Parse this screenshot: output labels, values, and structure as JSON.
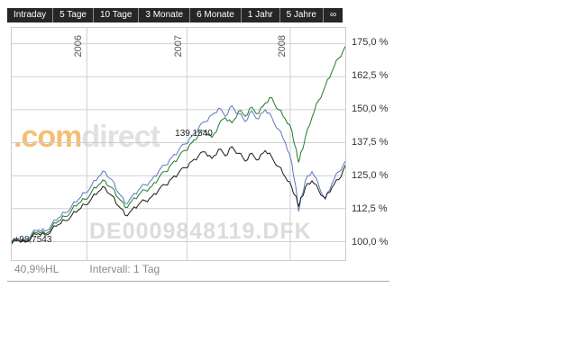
{
  "header": {
    "tabs": [
      {
        "label": "Intraday"
      },
      {
        "label": "5 Tage"
      },
      {
        "label": "10 Tage"
      },
      {
        "label": "3 Monate"
      },
      {
        "label": "6 Monate"
      },
      {
        "label": "1 Jahr"
      },
      {
        "label": "5 Jahre"
      },
      {
        "label": "∞"
      }
    ]
  },
  "watermark": {
    "brand_orange": ".com",
    "brand_gray": "direct",
    "isin_text": "DE0009848119.DFK"
  },
  "footer": {
    "range_text": "40,9%HL",
    "interval_label": "Intervall: 1 Tag"
  },
  "chart_data": {
    "type": "line",
    "title": "",
    "grid": true,
    "y_axis_side": "right",
    "ytick_labels": [
      "175,0 %",
      "162,5 %",
      "150,0 %",
      "137,5 %",
      "125,0 %",
      "112,5 %",
      "100,0 %"
    ],
    "yticks": [
      175,
      162.5,
      150,
      137.5,
      125,
      112.5,
      100
    ],
    "ylim": [
      93,
      181
    ],
    "xlim": [
      0,
      1
    ],
    "xticks": [
      {
        "label": "2006",
        "x": 0.225
      },
      {
        "label": "2007",
        "x": 0.525
      },
      {
        "label": "2008",
        "x": 0.835
      }
    ],
    "annotations": [
      {
        "label": "139,1540",
        "marker": "",
        "x": 0.495,
        "y": 139.15
      },
      {
        "label": "98,7543",
        "marker": "+",
        "x": 0.012,
        "y": 98.75
      }
    ],
    "series": [
      {
        "name": "fund-green",
        "color": "#1d7a2e",
        "points": [
          [
            0,
            99
          ],
          [
            0.02,
            100.5
          ],
          [
            0.04,
            100
          ],
          [
            0.06,
            102.2
          ],
          [
            0.08,
            103.8
          ],
          [
            0.1,
            103
          ],
          [
            0.12,
            105.5
          ],
          [
            0.14,
            107.8
          ],
          [
            0.16,
            109.5
          ],
          [
            0.18,
            112
          ],
          [
            0.2,
            114.5
          ],
          [
            0.22,
            116
          ],
          [
            0.24,
            119
          ],
          [
            0.26,
            121.5
          ],
          [
            0.28,
            123
          ],
          [
            0.3,
            120.5
          ],
          [
            0.32,
            116.5
          ],
          [
            0.34,
            113
          ],
          [
            0.36,
            115.5
          ],
          [
            0.38,
            117.5
          ],
          [
            0.4,
            119.5
          ],
          [
            0.42,
            121
          ],
          [
            0.44,
            124
          ],
          [
            0.46,
            126.5
          ],
          [
            0.48,
            129.5
          ],
          [
            0.5,
            132
          ],
          [
            0.52,
            134.5
          ],
          [
            0.54,
            137.5
          ],
          [
            0.56,
            140.5
          ],
          [
            0.58,
            142
          ],
          [
            0.6,
            139.5
          ],
          [
            0.62,
            144
          ],
          [
            0.64,
            147
          ],
          [
            0.66,
            145
          ],
          [
            0.68,
            149.5
          ],
          [
            0.7,
            147.5
          ],
          [
            0.72,
            151
          ],
          [
            0.74,
            148.5
          ],
          [
            0.76,
            152.5
          ],
          [
            0.78,
            154.5
          ],
          [
            0.8,
            150
          ],
          [
            0.82,
            146.5
          ],
          [
            0.84,
            142
          ],
          [
            0.85,
            136
          ],
          [
            0.86,
            130
          ],
          [
            0.87,
            134.5
          ],
          [
            0.88,
            139.5
          ],
          [
            0.9,
            147
          ],
          [
            0.92,
            153.5
          ],
          [
            0.94,
            159
          ],
          [
            0.96,
            164.5
          ],
          [
            0.98,
            169.5
          ],
          [
            1,
            174
          ]
        ]
      },
      {
        "name": "benchmark-blue",
        "color": "#5b79b8",
        "points": [
          [
            0,
            100
          ],
          [
            0.02,
            101
          ],
          [
            0.04,
            100.2
          ],
          [
            0.06,
            103
          ],
          [
            0.08,
            104.5
          ],
          [
            0.1,
            104
          ],
          [
            0.12,
            106.5
          ],
          [
            0.14,
            109
          ],
          [
            0.16,
            111
          ],
          [
            0.18,
            113.5
          ],
          [
            0.2,
            116
          ],
          [
            0.22,
            118.5
          ],
          [
            0.24,
            121.5
          ],
          [
            0.26,
            124.5
          ],
          [
            0.28,
            126.5
          ],
          [
            0.3,
            123.5
          ],
          [
            0.32,
            118.5
          ],
          [
            0.34,
            114.5
          ],
          [
            0.36,
            117
          ],
          [
            0.38,
            119.5
          ],
          [
            0.4,
            121.5
          ],
          [
            0.42,
            123.5
          ],
          [
            0.44,
            126.5
          ],
          [
            0.46,
            129
          ],
          [
            0.48,
            132
          ],
          [
            0.5,
            134.5
          ],
          [
            0.52,
            137
          ],
          [
            0.54,
            140
          ],
          [
            0.56,
            143
          ],
          [
            0.58,
            145.5
          ],
          [
            0.6,
            148
          ],
          [
            0.62,
            150.5
          ],
          [
            0.64,
            147.5
          ],
          [
            0.66,
            151.5
          ],
          [
            0.68,
            148.5
          ],
          [
            0.7,
            145.5
          ],
          [
            0.72,
            149.5
          ],
          [
            0.74,
            146.5
          ],
          [
            0.76,
            150
          ],
          [
            0.78,
            147
          ],
          [
            0.8,
            142.5
          ],
          [
            0.82,
            137.5
          ],
          [
            0.84,
            129.5
          ],
          [
            0.85,
            122
          ],
          [
            0.86,
            111.5
          ],
          [
            0.87,
            117.5
          ],
          [
            0.88,
            123
          ],
          [
            0.9,
            126.5
          ],
          [
            0.92,
            121.5
          ],
          [
            0.94,
            116
          ],
          [
            0.96,
            122
          ],
          [
            0.98,
            126.5
          ],
          [
            1,
            130.5
          ]
        ]
      },
      {
        "name": "benchmark-black",
        "color": "#1a1a1a",
        "points": [
          [
            0,
            99.5
          ],
          [
            0.02,
            100.5
          ],
          [
            0.04,
            99.8
          ],
          [
            0.06,
            101.8
          ],
          [
            0.08,
            103
          ],
          [
            0.1,
            102.5
          ],
          [
            0.12,
            104.5
          ],
          [
            0.14,
            106.5
          ],
          [
            0.16,
            108
          ],
          [
            0.18,
            110
          ],
          [
            0.2,
            112
          ],
          [
            0.22,
            114
          ],
          [
            0.24,
            116.5
          ],
          [
            0.26,
            119
          ],
          [
            0.28,
            120.5
          ],
          [
            0.3,
            117.5
          ],
          [
            0.32,
            113.5
          ],
          [
            0.34,
            110
          ],
          [
            0.36,
            112
          ],
          [
            0.38,
            114
          ],
          [
            0.4,
            115.5
          ],
          [
            0.42,
            117
          ],
          [
            0.44,
            119.5
          ],
          [
            0.46,
            121.5
          ],
          [
            0.48,
            124
          ],
          [
            0.5,
            126
          ],
          [
            0.52,
            128
          ],
          [
            0.54,
            130.5
          ],
          [
            0.56,
            132.5
          ],
          [
            0.58,
            134
          ],
          [
            0.6,
            131.5
          ],
          [
            0.62,
            135
          ],
          [
            0.64,
            132.5
          ],
          [
            0.66,
            136
          ],
          [
            0.68,
            133.5
          ],
          [
            0.7,
            130.5
          ],
          [
            0.72,
            133.5
          ],
          [
            0.74,
            131
          ],
          [
            0.76,
            134.5
          ],
          [
            0.78,
            132
          ],
          [
            0.8,
            128.5
          ],
          [
            0.82,
            124.5
          ],
          [
            0.84,
            120.5
          ],
          [
            0.85,
            117.5
          ],
          [
            0.86,
            113.5
          ],
          [
            0.87,
            117
          ],
          [
            0.88,
            120.5
          ],
          [
            0.9,
            123
          ],
          [
            0.92,
            119.5
          ],
          [
            0.94,
            116.5
          ],
          [
            0.96,
            120.5
          ],
          [
            0.98,
            123.5
          ],
          [
            1,
            129
          ]
        ]
      }
    ]
  }
}
